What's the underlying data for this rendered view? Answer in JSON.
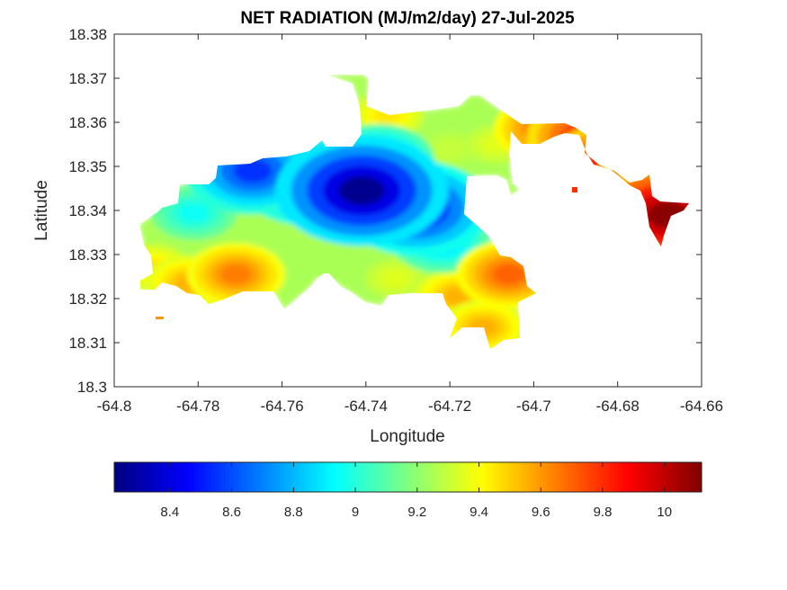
{
  "chart_data": {
    "type": "heatmap",
    "title": "NET RADIATION (MJ/m2/day) 27-Jul-2025",
    "xlabel": "Longitude",
    "ylabel": "Latitude",
    "xlim": [
      -64.8,
      -64.66
    ],
    "ylim": [
      18.3,
      18.38
    ],
    "xticks": [
      "-64.8",
      "-64.78",
      "-64.76",
      "-64.74",
      "-64.72",
      "-64.7",
      "-64.68",
      "-64.66"
    ],
    "yticks": [
      "18.3",
      "18.31",
      "18.32",
      "18.33",
      "18.34",
      "18.35",
      "18.36",
      "18.37",
      "18.38"
    ],
    "colormap": "jet",
    "clim": [
      8.22,
      10.12
    ],
    "colorbar_ticks": [
      "8.4",
      "8.6",
      "8.8",
      "9",
      "9.2",
      "9.4",
      "9.6",
      "9.8",
      "10"
    ],
    "colorbar_location": "southoutside",
    "grid": false,
    "fields": [
      {
        "lon": -64.741,
        "lat": 18.3445,
        "value": 8.25
      },
      {
        "lon": -64.728,
        "lat": 18.3405,
        "value": 8.45
      },
      {
        "lon": -64.754,
        "lat": 18.3465,
        "value": 8.55
      },
      {
        "lon": -64.767,
        "lat": 18.349,
        "value": 8.55
      },
      {
        "lon": -64.737,
        "lat": 18.3515,
        "value": 8.75
      },
      {
        "lon": -64.722,
        "lat": 18.333,
        "value": 8.85
      },
      {
        "lon": -64.781,
        "lat": 18.3395,
        "value": 8.95
      },
      {
        "lon": -64.771,
        "lat": 18.3255,
        "value": 9.65
      },
      {
        "lon": -64.782,
        "lat": 18.3235,
        "value": 9.55
      },
      {
        "lon": -64.791,
        "lat": 18.327,
        "value": 9.45
      },
      {
        "lon": -64.747,
        "lat": 18.3275,
        "value": 9.25
      },
      {
        "lon": -64.733,
        "lat": 18.3245,
        "value": 9.35
      },
      {
        "lon": -64.718,
        "lat": 18.3205,
        "value": 9.55
      },
      {
        "lon": -64.706,
        "lat": 18.3255,
        "value": 9.7
      },
      {
        "lon": -64.712,
        "lat": 18.3135,
        "value": 9.55
      },
      {
        "lon": -64.72,
        "lat": 18.354,
        "value": 9.3
      },
      {
        "lon": -64.735,
        "lat": 18.3615,
        "value": 9.45
      },
      {
        "lon": -64.709,
        "lat": 18.355,
        "value": 9.35
      },
      {
        "lon": -64.697,
        "lat": 18.3585,
        "value": 9.7
      },
      {
        "lon": -64.687,
        "lat": 18.3565,
        "value": 9.85
      },
      {
        "lon": -64.681,
        "lat": 18.3505,
        "value": 9.9
      },
      {
        "lon": -64.668,
        "lat": 18.339,
        "value": 10.1
      },
      {
        "lon": -64.672,
        "lat": 18.343,
        "value": 10.0
      }
    ]
  }
}
